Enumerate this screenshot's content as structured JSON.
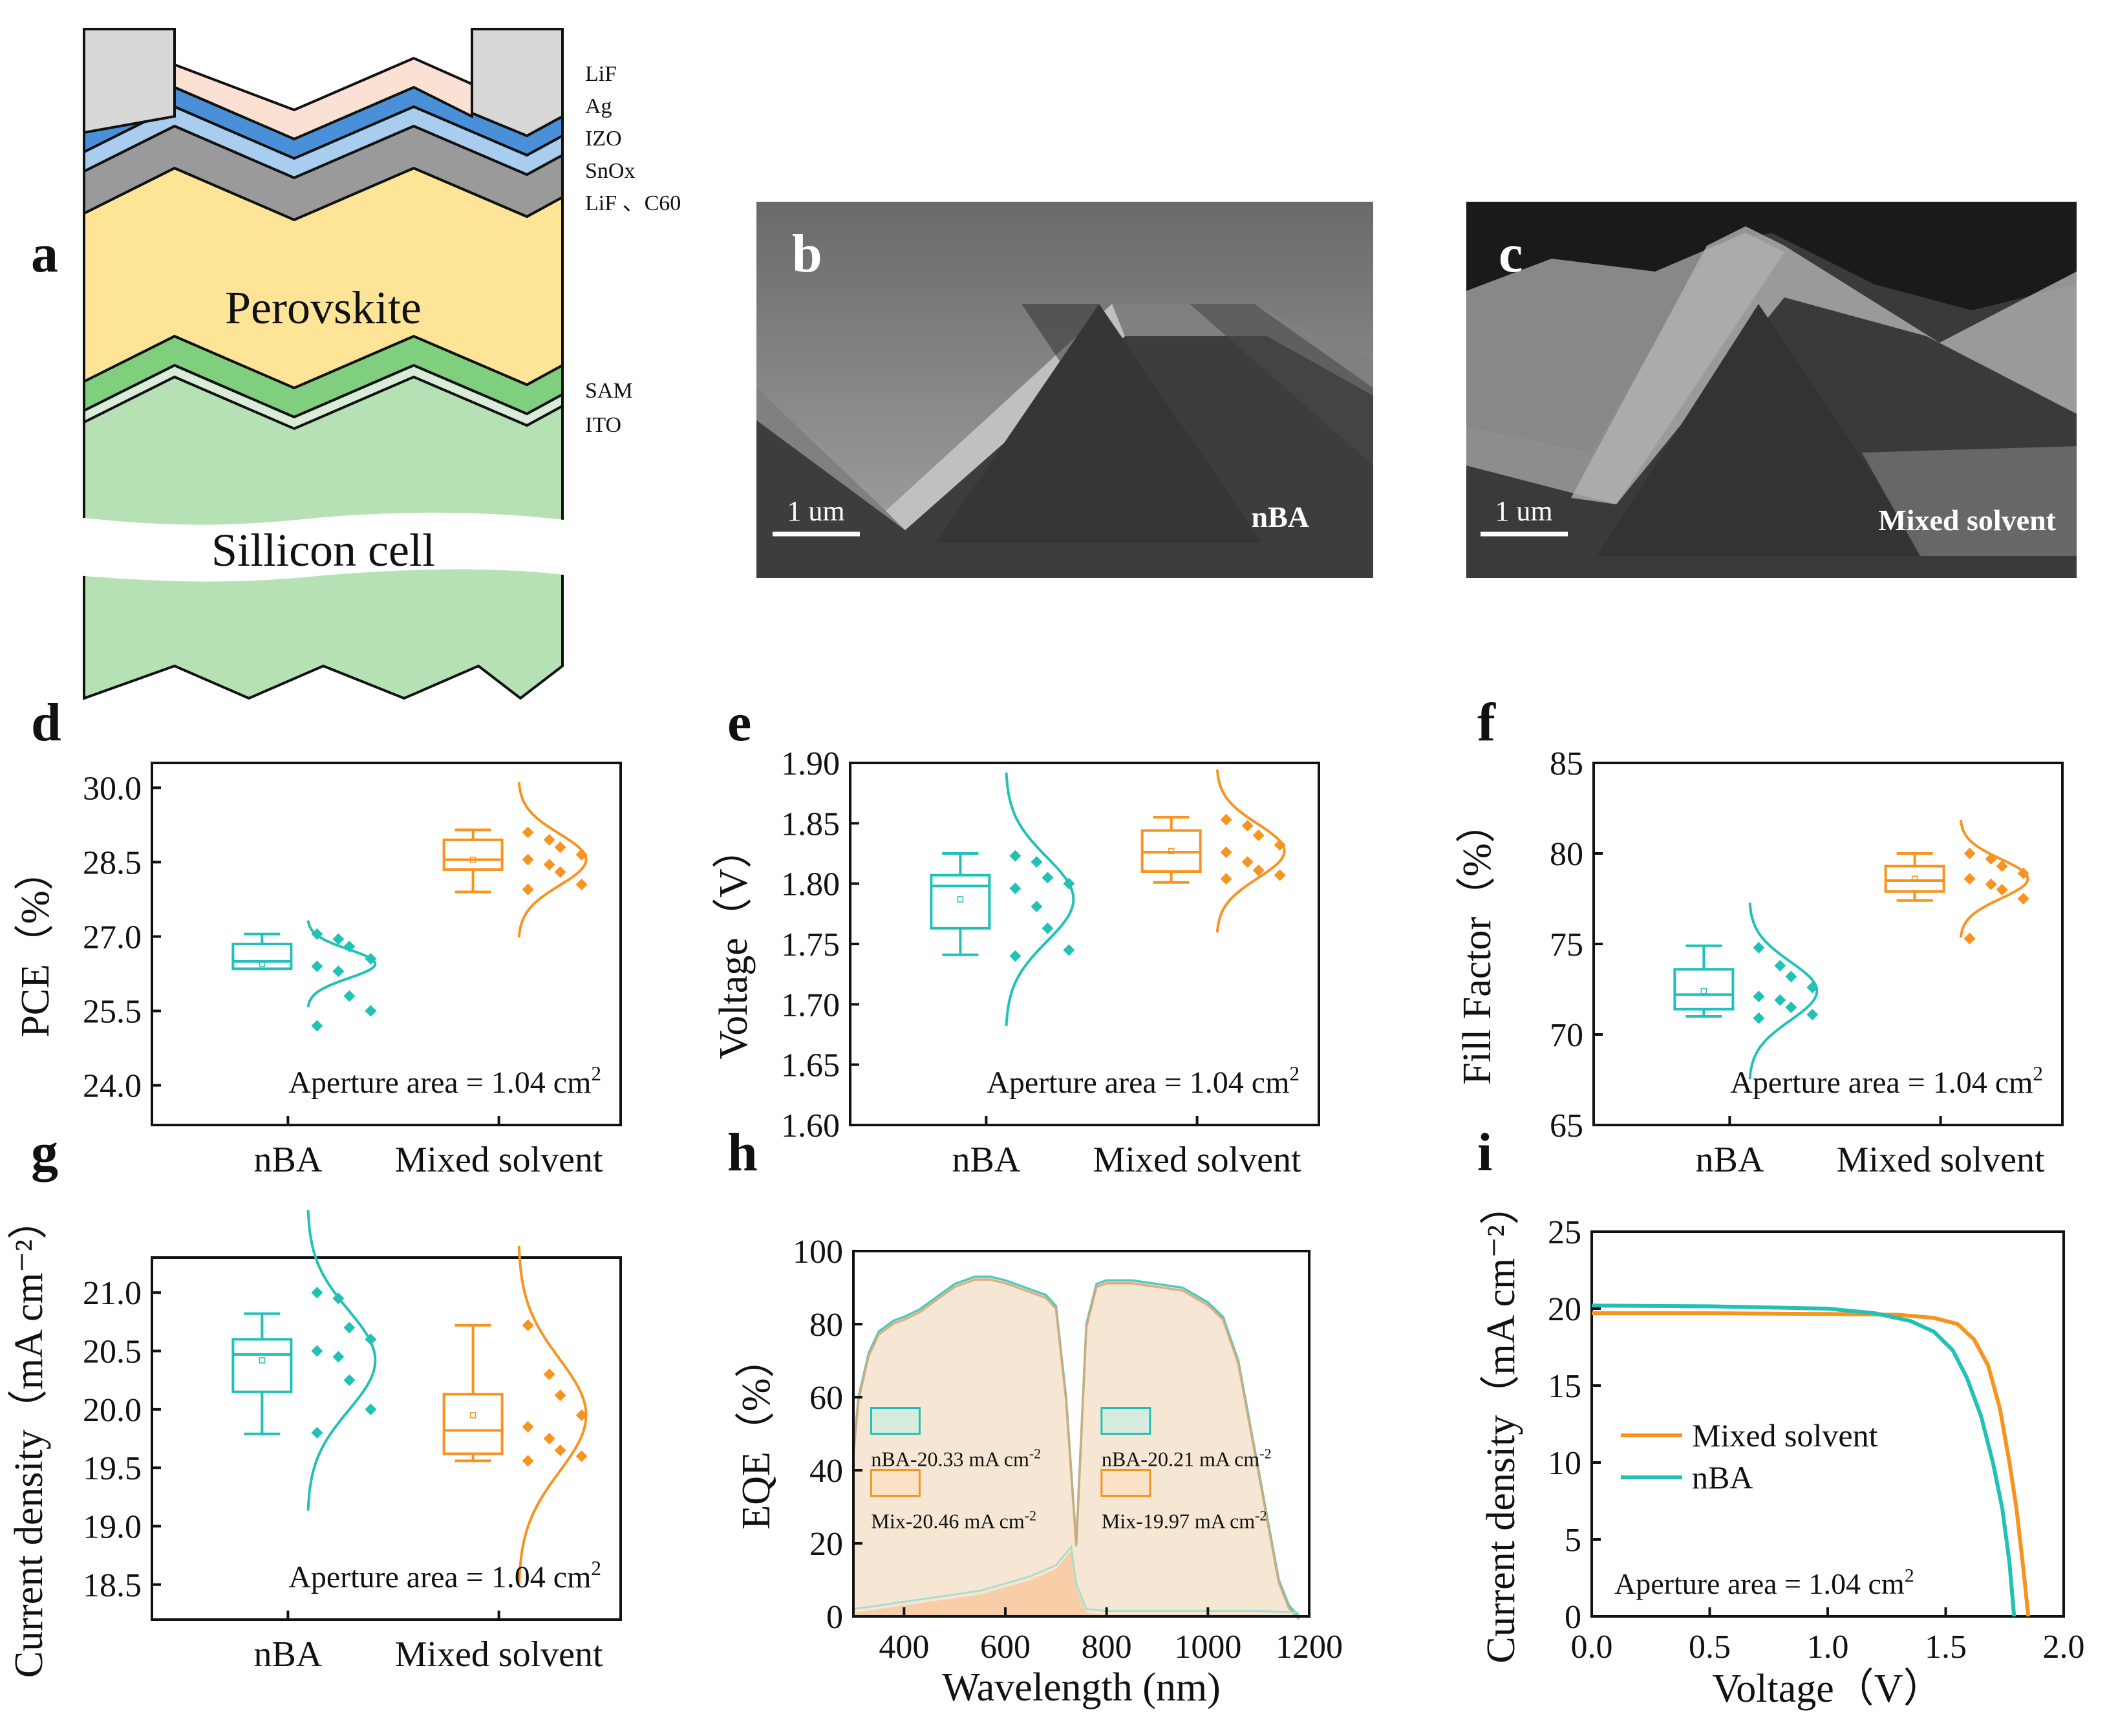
{
  "panel_letters": [
    "a",
    "b",
    "c",
    "d",
    "e",
    "f",
    "g",
    "h",
    "i"
  ],
  "colors": {
    "nba": "#21c1b7",
    "mixed": "#f7931e",
    "lif_top": "#d8d8d8",
    "ag": "#fbe1d4",
    "izo": "#4a90d9",
    "snox": "#a9cdee",
    "lif_c60": "#9a9a9a",
    "perovskite": "#fde497",
    "sam": "#7fcf7f",
    "ito": "#d8ecd8",
    "silicon": "#b6e1b5",
    "eqe_fill": "#f6e7d4"
  },
  "schematic": {
    "layers": [
      "LiF",
      "Ag",
      "IZO",
      "SnOx",
      "LiF 、C60"
    ],
    "bottom_layers": [
      "SAM",
      "ITO"
    ],
    "perovskite_label": "Perovskite",
    "silicon_label": "Sillicon cell"
  },
  "sem_b": {
    "scale": "1 um",
    "label": "nBA"
  },
  "sem_c": {
    "scale": "1 um",
    "label": "Mixed solvent"
  },
  "aperture": "Aperture area = 1.04 cm",
  "aperture_sup": "2",
  "chart_data": [
    {
      "id": "d",
      "type": "box",
      "ylabel": "PCE（%）",
      "categories": [
        "nBA",
        "Mixed solvent"
      ],
      "ylim": [
        23.2,
        30.5
      ],
      "yticks": [
        "24.0",
        "25.5",
        "27.0",
        "28.5",
        "30.0"
      ],
      "series": [
        {
          "name": "nBA",
          "q1": 26.35,
          "median": 26.5,
          "q3": 26.85,
          "mean": 26.45,
          "whisker_low": 26.35,
          "whisker_high": 27.05,
          "points": [
            27.05,
            26.95,
            26.8,
            26.55,
            26.4,
            26.3,
            25.8,
            25.5,
            25.2
          ]
        },
        {
          "name": "Mixed solvent",
          "q1": 28.35,
          "median": 28.55,
          "q3": 28.95,
          "mean": 28.55,
          "whisker_low": 27.9,
          "whisker_high": 29.15,
          "points": [
            29.1,
            28.95,
            28.8,
            28.65,
            28.55,
            28.45,
            28.3,
            28.05,
            27.95
          ]
        }
      ]
    },
    {
      "id": "e",
      "type": "box",
      "ylabel": "Voltage（V）",
      "categories": [
        "nBA",
        "Mixed solvent"
      ],
      "ylim": [
        1.6,
        1.9
      ],
      "yticks": [
        "1.60",
        "1.65",
        "1.70",
        "1.75",
        "1.80",
        "1.85",
        "1.90"
      ],
      "series": [
        {
          "name": "nBA",
          "q1": 1.763,
          "median": 1.798,
          "q3": 1.807,
          "mean": 1.787,
          "whisker_low": 1.741,
          "whisker_high": 1.825,
          "points": [
            1.823,
            1.818,
            1.805,
            1.8,
            1.796,
            1.781,
            1.763,
            1.745,
            1.74
          ]
        },
        {
          "name": "Mixed solvent",
          "q1": 1.81,
          "median": 1.826,
          "q3": 1.844,
          "mean": 1.827,
          "whisker_low": 1.801,
          "whisker_high": 1.855,
          "points": [
            1.853,
            1.848,
            1.84,
            1.832,
            1.826,
            1.818,
            1.811,
            1.807,
            1.804
          ]
        }
      ]
    },
    {
      "id": "f",
      "type": "box",
      "ylabel": "Fill Factor（%）",
      "categories": [
        "nBA",
        "Mixed solvent"
      ],
      "ylim": [
        65,
        85
      ],
      "yticks": [
        "65",
        "70",
        "75",
        "80",
        "85"
      ],
      "series": [
        {
          "name": "nBA",
          "q1": 71.4,
          "median": 72.2,
          "q3": 73.6,
          "mean": 72.4,
          "whisker_low": 71.0,
          "whisker_high": 74.9,
          "points": [
            74.8,
            73.8,
            73.2,
            72.6,
            72.1,
            71.9,
            71.5,
            71.1,
            70.9
          ]
        },
        {
          "name": "Mixed solvent",
          "q1": 77.9,
          "median": 78.5,
          "q3": 79.3,
          "mean": 78.6,
          "whisker_low": 77.4,
          "whisker_high": 80.0,
          "points": [
            80.0,
            79.7,
            79.3,
            78.9,
            78.6,
            78.3,
            78.0,
            77.5,
            75.3
          ]
        }
      ]
    },
    {
      "id": "g",
      "type": "box",
      "ylabel": "Current density（mA cm⁻²）",
      "categories": [
        "nBA",
        "Mixed solvent"
      ],
      "ylim": [
        18.2,
        21.3
      ],
      "yticks": [
        "18.5",
        "19.0",
        "19.5",
        "20.0",
        "20.5",
        "21.0"
      ],
      "series": [
        {
          "name": "nBA",
          "q1": 20.15,
          "median": 20.47,
          "q3": 20.6,
          "mean": 20.42,
          "whisker_low": 19.79,
          "whisker_high": 20.82,
          "points": [
            21.0,
            20.95,
            20.7,
            20.6,
            20.5,
            20.45,
            20.25,
            20.0,
            19.8
          ]
        },
        {
          "name": "Mixed solvent",
          "q1": 19.62,
          "median": 19.82,
          "q3": 20.13,
          "mean": 19.95,
          "whisker_low": 19.56,
          "whisker_high": 20.72,
          "points": [
            20.72,
            20.3,
            20.12,
            19.95,
            19.85,
            19.75,
            19.65,
            19.6,
            19.56
          ]
        }
      ]
    },
    {
      "id": "h",
      "type": "area",
      "xlabel": "Wavelength (nm)",
      "ylabel": "EQE（%）",
      "xlim": [
        300,
        1200
      ],
      "ylim": [
        0,
        100
      ],
      "xticks": [
        "400",
        "600",
        "800",
        "1000",
        "1200"
      ],
      "yticks": [
        "0",
        "20",
        "40",
        "60",
        "80",
        "100"
      ],
      "legend": [
        "nBA-20.33 mA cm",
        "Mix-20.46 mA cm",
        "nBA-20.21 mA cm",
        "Mix-19.97 mA cm"
      ],
      "legend_sup": "-2",
      "top_x": [
        300,
        310,
        330,
        350,
        380,
        400,
        430,
        460,
        500,
        540,
        570,
        600,
        640,
        680,
        700,
        720,
        740,
        760,
        780,
        800,
        850,
        900,
        950,
        1000,
        1030,
        1060,
        1080,
        1100,
        1120,
        1140,
        1160,
        1180
      ],
      "top_y": [
        45,
        60,
        72,
        78,
        81,
        82,
        84,
        87,
        91,
        93,
        93,
        92,
        90,
        88,
        85,
        60,
        20,
        80,
        91,
        92,
        92,
        91,
        90,
        86,
        82,
        70,
        55,
        40,
        25,
        10,
        3,
        0
      ],
      "bottom_x": [
        300,
        350,
        400,
        450,
        500,
        550,
        600,
        650,
        700,
        730,
        740,
        760,
        800,
        850,
        900,
        1000,
        1100,
        1180
      ],
      "bottom_y": [
        1,
        2,
        3,
        4,
        5,
        6,
        8,
        10,
        13,
        18,
        8,
        1,
        0.5,
        0.5,
        0.5,
        0.5,
        0.5,
        0
      ]
    },
    {
      "id": "i",
      "type": "line",
      "xlabel": "Voltage（V）",
      "ylabel": "Current density（mA cm⁻²）",
      "xlim": [
        0.0,
        2.0
      ],
      "ylim": [
        0,
        25
      ],
      "xticks": [
        "0.0",
        "0.5",
        "1.0",
        "1.5",
        "2.0"
      ],
      "yticks": [
        "0",
        "5",
        "10",
        "15",
        "20",
        "25"
      ],
      "series": [
        {
          "name": "Mixed solvent",
          "x": [
            0,
            0.5,
            1.0,
            1.3,
            1.45,
            1.55,
            1.62,
            1.68,
            1.73,
            1.77,
            1.8,
            1.83,
            1.85
          ],
          "y": [
            19.7,
            19.7,
            19.65,
            19.6,
            19.4,
            19.0,
            18.0,
            16.3,
            13.5,
            10.0,
            7.0,
            3.0,
            0
          ]
        },
        {
          "name": "nBA",
          "x": [
            0,
            0.5,
            1.0,
            1.2,
            1.35,
            1.45,
            1.53,
            1.59,
            1.65,
            1.7,
            1.74,
            1.77,
            1.79
          ],
          "y": [
            20.2,
            20.15,
            20.0,
            19.7,
            19.2,
            18.5,
            17.3,
            15.5,
            13.0,
            10.0,
            7.0,
            3.5,
            0
          ]
        }
      ]
    }
  ]
}
